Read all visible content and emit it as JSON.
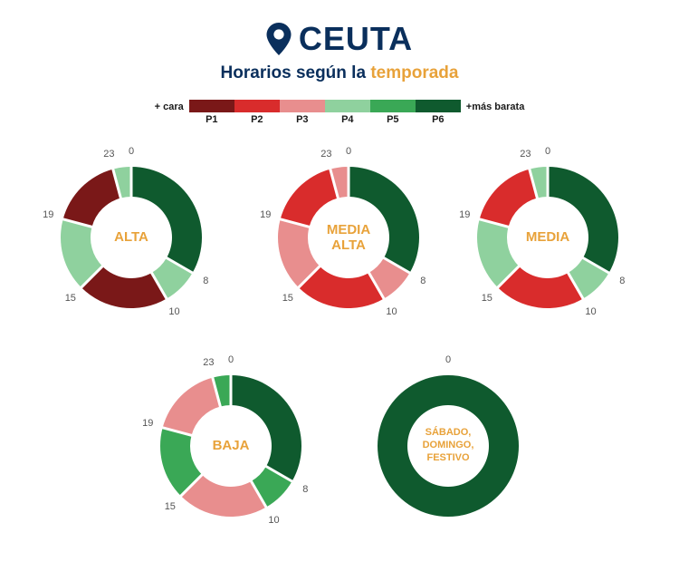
{
  "header": {
    "location": "CEUTA",
    "subtitle_prefix": "Horarios según la ",
    "subtitle_accent": "temporada"
  },
  "legend": {
    "left_label": "+ cara",
    "right_label": "+más barata",
    "items": [
      {
        "label": "P1",
        "color": "#7a1818"
      },
      {
        "label": "P2",
        "color": "#d92c2c"
      },
      {
        "label": "P3",
        "color": "#e88e8e"
      },
      {
        "label": "P4",
        "color": "#8fd19e"
      },
      {
        "label": "P5",
        "color": "#3aa856"
      },
      {
        "label": "P6",
        "color": "#0f5a2e"
      }
    ]
  },
  "palette": {
    "P1": "#7a1818",
    "P2": "#d92c2c",
    "P3": "#e88e8e",
    "P4": "#8fd19e",
    "P5": "#3aa856",
    "P6": "#0f5a2e"
  },
  "donut_style": {
    "outer_radius": 78,
    "inner_radius": 45,
    "gap_color": "#ffffff",
    "gap_width": 3,
    "hour_label_radius": 95,
    "hour_label_color": "#555"
  },
  "charts": [
    {
      "id": "alta",
      "label": "ALTA",
      "hour_marks": [
        0,
        8,
        10,
        15,
        19,
        23
      ],
      "segments": [
        {
          "from": 0,
          "to": 8,
          "period": "P6"
        },
        {
          "from": 8,
          "to": 10,
          "period": "P4"
        },
        {
          "from": 10,
          "to": 15,
          "period": "P1"
        },
        {
          "from": 15,
          "to": 19,
          "period": "P4"
        },
        {
          "from": 19,
          "to": 23,
          "period": "P1"
        },
        {
          "from": 23,
          "to": 24,
          "period": "P4"
        }
      ]
    },
    {
      "id": "media-alta",
      "label": "MEDIA\nALTA",
      "hour_marks": [
        0,
        8,
        10,
        15,
        19,
        23
      ],
      "segments": [
        {
          "from": 0,
          "to": 8,
          "period": "P6"
        },
        {
          "from": 8,
          "to": 10,
          "period": "P3"
        },
        {
          "from": 10,
          "to": 15,
          "period": "P2"
        },
        {
          "from": 15,
          "to": 19,
          "period": "P3"
        },
        {
          "from": 19,
          "to": 23,
          "period": "P2"
        },
        {
          "from": 23,
          "to": 24,
          "period": "P3"
        }
      ]
    },
    {
      "id": "media",
      "label": "MEDIA",
      "hour_marks": [
        0,
        8,
        10,
        15,
        19,
        23
      ],
      "segments": [
        {
          "from": 0,
          "to": 8,
          "period": "P6"
        },
        {
          "from": 8,
          "to": 10,
          "period": "P4"
        },
        {
          "from": 10,
          "to": 15,
          "period": "P2"
        },
        {
          "from": 15,
          "to": 19,
          "period": "P4"
        },
        {
          "from": 19,
          "to": 23,
          "period": "P2"
        },
        {
          "from": 23,
          "to": 24,
          "period": "P4"
        }
      ]
    },
    {
      "id": "baja",
      "label": "BAJA",
      "hour_marks": [
        0,
        8,
        10,
        15,
        19,
        23
      ],
      "segments": [
        {
          "from": 0,
          "to": 8,
          "period": "P6"
        },
        {
          "from": 8,
          "to": 10,
          "period": "P5"
        },
        {
          "from": 10,
          "to": 15,
          "period": "P3"
        },
        {
          "from": 15,
          "to": 19,
          "period": "P5"
        },
        {
          "from": 19,
          "to": 23,
          "period": "P3"
        },
        {
          "from": 23,
          "to": 24,
          "period": "P5"
        }
      ]
    },
    {
      "id": "weekend",
      "label": "SÁBADO,\nDOMINGO,\nFESTIVO",
      "label_small": true,
      "hour_marks": [
        0
      ],
      "segments": [
        {
          "from": 0,
          "to": 24,
          "period": "P6"
        }
      ]
    }
  ]
}
